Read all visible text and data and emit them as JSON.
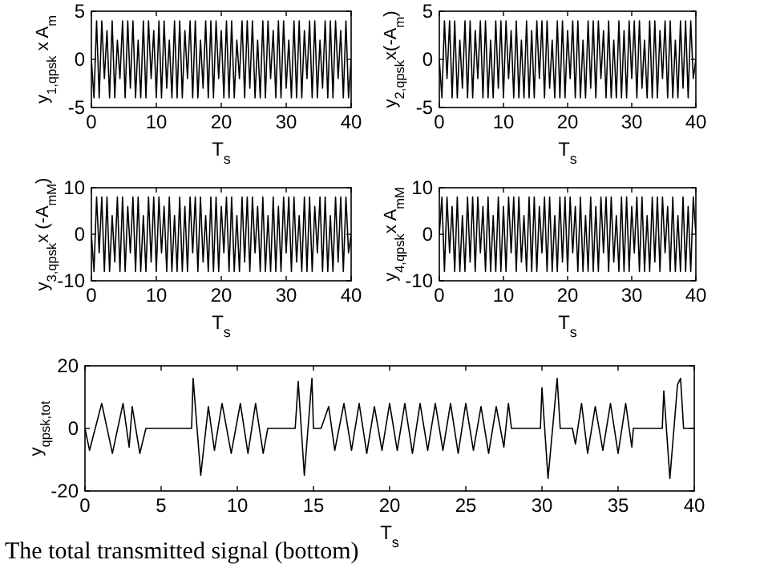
{
  "chart_data": [
    {
      "type": "line",
      "xlabel": "T$_{s}$",
      "ylabel": "y$_{1,qpsk}$ x A$_{m}$",
      "xlim": [
        0,
        40
      ],
      "ylim": [
        -5,
        5
      ],
      "xticks": [
        0,
        10,
        20,
        30,
        40
      ],
      "yticks": [
        -5,
        0,
        5
      ],
      "grid": false,
      "x": [
        0,
        0.4,
        0.8,
        1.2,
        1.6,
        2,
        2.4,
        2.8,
        3.2,
        3.6,
        4,
        4.4,
        4.8,
        5.2,
        5.6,
        6,
        6.4,
        6.8,
        7.2,
        7.6,
        8,
        8.4,
        8.8,
        9.2,
        9.6,
        10,
        10.4,
        10.8,
        11.2,
        11.6,
        12,
        12.4,
        12.8,
        13.2,
        13.6,
        14,
        14.4,
        14.8,
        15.2,
        15.6,
        16,
        16.4,
        16.8,
        17.2,
        17.6,
        18,
        18.4,
        18.8,
        19.2,
        19.6,
        20,
        20.4,
        20.8,
        21.2,
        21.6,
        22,
        22.4,
        22.8,
        23.2,
        23.6,
        24,
        24.4,
        24.8,
        25.2,
        25.6,
        26,
        26.4,
        26.8,
        27.2,
        27.6,
        28,
        28.4,
        28.8,
        29.2,
        29.6,
        30,
        30.4,
        30.8,
        31.2,
        31.6,
        32,
        32.4,
        32.8,
        33.2,
        33.6,
        34,
        34.4,
        34.8,
        35.2,
        35.6,
        36,
        36.4,
        36.8,
        37.2,
        37.6,
        38,
        38.4,
        38.8,
        39.2,
        39.6,
        40
      ],
      "series": [
        {
          "color": "#000000",
          "values": [
            0,
            -4,
            4,
            -4,
            4,
            -2,
            3,
            -4,
            4,
            -4,
            2,
            -2,
            4,
            -4,
            4,
            -3,
            4,
            -4,
            2,
            -4,
            4,
            -4,
            4,
            -2,
            3,
            -4,
            4,
            -4,
            4,
            -3,
            2,
            -4,
            4,
            -4,
            4,
            -4,
            3,
            -2,
            4,
            -4,
            4,
            -4,
            2,
            -3,
            4,
            -4,
            4,
            -4,
            4,
            -2,
            3,
            -4,
            4,
            -4,
            4,
            -4,
            2,
            -2,
            4,
            -4,
            4,
            -3,
            4,
            -4,
            2,
            -4,
            4,
            -4,
            4,
            -2,
            3,
            -4,
            4,
            -4,
            4,
            -3,
            2,
            -4,
            4,
            -4,
            4,
            -4,
            3,
            -2,
            4,
            -4,
            4,
            -4,
            2,
            -3,
            4,
            -4,
            4,
            -4,
            4,
            -2,
            3,
            -4,
            4,
            -4,
            0
          ]
        }
      ]
    },
    {
      "type": "line",
      "xlabel": "T$_{s}$",
      "ylabel": "y$_{2,qpsk}$x(-A$_{m}$)",
      "xlim": [
        0,
        40
      ],
      "ylim": [
        -5,
        5
      ],
      "xticks": [
        0,
        10,
        20,
        30,
        40
      ],
      "yticks": [
        -5,
        0,
        5
      ],
      "grid": false,
      "x": [
        0,
        0.4,
        0.8,
        1.2,
        1.6,
        2,
        2.4,
        2.8,
        3.2,
        3.6,
        4,
        4.4,
        4.8,
        5.2,
        5.6,
        6,
        6.4,
        6.8,
        7.2,
        7.6,
        8,
        8.4,
        8.8,
        9.2,
        9.6,
        10,
        10.4,
        10.8,
        11.2,
        11.6,
        12,
        12.4,
        12.8,
        13.2,
        13.6,
        14,
        14.4,
        14.8,
        15.2,
        15.6,
        16,
        16.4,
        16.8,
        17.2,
        17.6,
        18,
        18.4,
        18.8,
        19.2,
        19.6,
        20,
        20.4,
        20.8,
        21.2,
        21.6,
        22,
        22.4,
        22.8,
        23.2,
        23.6,
        24,
        24.4,
        24.8,
        25.2,
        25.6,
        26,
        26.4,
        26.8,
        27.2,
        27.6,
        28,
        28.4,
        28.8,
        29.2,
        29.6,
        30,
        30.4,
        30.8,
        31.2,
        31.6,
        32,
        32.4,
        32.8,
        33.2,
        33.6,
        34,
        34.4,
        34.8,
        35.2,
        35.6,
        36,
        36.4,
        36.8,
        37.2,
        37.6,
        38,
        38.4,
        38.8,
        39.2,
        39.6,
        40
      ],
      "series": [
        {
          "color": "#000000",
          "values": [
            0,
            -4,
            4,
            -2,
            4,
            -4,
            4,
            -4,
            2,
            -3,
            4,
            -4,
            4,
            -4,
            3,
            -2,
            4,
            -4,
            4,
            -4,
            2,
            -4,
            4,
            -3,
            4,
            -4,
            4,
            -2,
            3,
            -4,
            4,
            -4,
            2,
            -4,
            4,
            -4,
            3,
            -4,
            4,
            -2,
            4,
            -4,
            4,
            -3,
            2,
            -4,
            4,
            -4,
            4,
            -4,
            3,
            -2,
            4,
            -4,
            4,
            -4,
            2,
            -4,
            4,
            -3,
            4,
            -4,
            4,
            -2,
            3,
            -4,
            4,
            -4,
            2,
            -4,
            4,
            -4,
            3,
            -4,
            4,
            -2,
            4,
            -4,
            4,
            -3,
            2,
            -4,
            4,
            -4,
            4,
            -4,
            3,
            -2,
            4,
            -4,
            4,
            -4,
            2,
            -4,
            4,
            -3,
            4,
            -4,
            4,
            -2,
            0
          ]
        }
      ]
    },
    {
      "type": "line",
      "xlabel": "T$_{s}$",
      "ylabel": "y$_{3,qpsk}$x (-A$_{mM}$)",
      "xlim": [
        0,
        40
      ],
      "ylim": [
        -10,
        10
      ],
      "xticks": [
        0,
        10,
        20,
        30,
        40
      ],
      "yticks": [
        -10,
        0,
        10
      ],
      "grid": false,
      "x": [
        0,
        0.4,
        0.8,
        1.2,
        1.6,
        2,
        2.4,
        2.8,
        3.2,
        3.6,
        4,
        4.4,
        4.8,
        5.2,
        5.6,
        6,
        6.4,
        6.8,
        7.2,
        7.6,
        8,
        8.4,
        8.8,
        9.2,
        9.6,
        10,
        10.4,
        10.8,
        11.2,
        11.6,
        12,
        12.4,
        12.8,
        13.2,
        13.6,
        14,
        14.4,
        14.8,
        15.2,
        15.6,
        16,
        16.4,
        16.8,
        17.2,
        17.6,
        18,
        18.4,
        18.8,
        19.2,
        19.6,
        20,
        20.4,
        20.8,
        21.2,
        21.6,
        22,
        22.4,
        22.8,
        23.2,
        23.6,
        24,
        24.4,
        24.8,
        25.2,
        25.6,
        26,
        26.4,
        26.8,
        27.2,
        27.6,
        28,
        28.4,
        28.8,
        29.2,
        29.6,
        30,
        30.4,
        30.8,
        31.2,
        31.6,
        32,
        32.4,
        32.8,
        33.2,
        33.6,
        34,
        34.4,
        34.8,
        35.2,
        35.6,
        36,
        36.4,
        36.8,
        37.2,
        37.6,
        38,
        38.4,
        38.8,
        39.2,
        39.6,
        40
      ],
      "series": [
        {
          "color": "#000000",
          "values": [
            0,
            -8,
            8,
            -4,
            8,
            -8,
            8,
            -8,
            4,
            -6,
            8,
            -8,
            8,
            -8,
            6,
            -4,
            8,
            -8,
            8,
            -8,
            4,
            -8,
            8,
            -6,
            8,
            -8,
            8,
            -4,
            6,
            -8,
            8,
            -8,
            4,
            -8,
            8,
            -8,
            6,
            -8,
            8,
            -4,
            8,
            -8,
            8,
            -6,
            4,
            -8,
            8,
            -8,
            8,
            -8,
            6,
            -4,
            8,
            -8,
            8,
            -8,
            4,
            -8,
            8,
            -6,
            8,
            -8,
            8,
            -4,
            6,
            -8,
            8,
            -8,
            4,
            -8,
            8,
            -8,
            6,
            -8,
            8,
            -4,
            8,
            -8,
            8,
            -6,
            4,
            -8,
            8,
            -8,
            8,
            -8,
            6,
            -4,
            8,
            -8,
            8,
            -8,
            4,
            -8,
            8,
            -6,
            8,
            -8,
            8,
            -4,
            0
          ]
        }
      ]
    },
    {
      "type": "line",
      "xlabel": "T$_{s}$",
      "ylabel": "y$_{4,qpsk}$x A$_{mM}$",
      "xlim": [
        0,
        40
      ],
      "ylim": [
        -10,
        10
      ],
      "xticks": [
        0,
        10,
        20,
        30,
        40
      ],
      "yticks": [
        -10,
        0,
        10
      ],
      "grid": false,
      "x": [
        0,
        0.4,
        0.8,
        1.2,
        1.6,
        2,
        2.4,
        2.8,
        3.2,
        3.6,
        4,
        4.4,
        4.8,
        5.2,
        5.6,
        6,
        6.4,
        6.8,
        7.2,
        7.6,
        8,
        8.4,
        8.8,
        9.2,
        9.6,
        10,
        10.4,
        10.8,
        11.2,
        11.6,
        12,
        12.4,
        12.8,
        13.2,
        13.6,
        14,
        14.4,
        14.8,
        15.2,
        15.6,
        16,
        16.4,
        16.8,
        17.2,
        17.6,
        18,
        18.4,
        18.8,
        19.2,
        19.6,
        20,
        20.4,
        20.8,
        21.2,
        21.6,
        22,
        22.4,
        22.8,
        23.2,
        23.6,
        24,
        24.4,
        24.8,
        25.2,
        25.6,
        26,
        26.4,
        26.8,
        27.2,
        27.6,
        28,
        28.4,
        28.8,
        29.2,
        29.6,
        30,
        30.4,
        30.8,
        31.2,
        31.6,
        32,
        32.4,
        32.8,
        33.2,
        33.6,
        34,
        34.4,
        34.8,
        35.2,
        35.6,
        36,
        36.4,
        36.8,
        37.2,
        37.6,
        38,
        38.4,
        38.8,
        39.2,
        39.6,
        40
      ],
      "series": [
        {
          "color": "#000000",
          "values": [
            0,
            8,
            -8,
            8,
            -4,
            6,
            -8,
            8,
            -8,
            4,
            -8,
            8,
            -6,
            8,
            -8,
            8,
            -4,
            6,
            -8,
            8,
            -8,
            4,
            -8,
            8,
            -8,
            6,
            -8,
            8,
            -4,
            8,
            -8,
            8,
            -6,
            4,
            -8,
            8,
            -8,
            8,
            -8,
            6,
            -4,
            8,
            -8,
            8,
            -8,
            4,
            -8,
            8,
            -6,
            8,
            -8,
            8,
            -4,
            6,
            -8,
            8,
            -8,
            4,
            -8,
            8,
            -8,
            6,
            -8,
            8,
            -4,
            8,
            -8,
            8,
            -6,
            4,
            -8,
            8,
            -8,
            8,
            -8,
            6,
            -4,
            8,
            -8,
            8,
            -8,
            4,
            -8,
            8,
            -6,
            8,
            -8,
            8,
            -4,
            6,
            -8,
            8,
            -8,
            4,
            -8,
            8,
            -8,
            6,
            -8,
            8,
            0
          ]
        }
      ]
    },
    {
      "type": "line",
      "xlabel": "T$_{s}$",
      "ylabel": "y$_{qpsk,tot}$",
      "xlim": [
        0,
        40
      ],
      "ylim": [
        -20,
        20
      ],
      "xticks": [
        0,
        5,
        10,
        15,
        20,
        25,
        30,
        35,
        40
      ],
      "yticks": [
        -20,
        0,
        20
      ],
      "grid": false,
      "annotations": [
        "The total transmitted signal (bottom)"
      ],
      "x": [
        0,
        0.3,
        1.1,
        1.8,
        2.5,
        2.9,
        3.1,
        3.6,
        4,
        7,
        7.1,
        7.6,
        8.1,
        8.5,
        9,
        9.6,
        10.2,
        10.7,
        11.2,
        11.7,
        12,
        13.8,
        14,
        14.4,
        14.9,
        15,
        15.5,
        16,
        16.4,
        17,
        17.5,
        18,
        18.5,
        19,
        19.5,
        20,
        20.5,
        21,
        21.5,
        22,
        22.5,
        23,
        23.5,
        24,
        24.5,
        25,
        25.5,
        26,
        26.5,
        27,
        27.5,
        27.8,
        28,
        29.9,
        30,
        30.4,
        31,
        31.2,
        32,
        32.2,
        32.6,
        33,
        33.5,
        34,
        34.5,
        35,
        35.5,
        35.9,
        36,
        37.9,
        38,
        38.4,
        38.9,
        39.1,
        39.3,
        40
      ],
      "series": [
        {
          "color": "#000000",
          "values": [
            0,
            -7,
            8,
            -8,
            8,
            -6,
            7,
            -8,
            0,
            0,
            16,
            -15,
            7,
            -7,
            8,
            -8,
            8,
            -8,
            8,
            -8,
            0,
            0,
            15,
            -15,
            16,
            0,
            0,
            7,
            -7,
            8,
            -7,
            8,
            -8,
            7,
            -7,
            8,
            -7,
            8,
            -8,
            8,
            -7,
            8,
            -7,
            8,
            -8,
            8,
            -7,
            7,
            -8,
            7,
            -6,
            8,
            0,
            0,
            13,
            -16,
            16,
            0,
            0,
            -5,
            8,
            -8,
            7,
            -7,
            8,
            -8,
            8,
            -6,
            0,
            0,
            12,
            -16,
            14,
            16,
            0,
            0
          ]
        }
      ]
    }
  ]
}
